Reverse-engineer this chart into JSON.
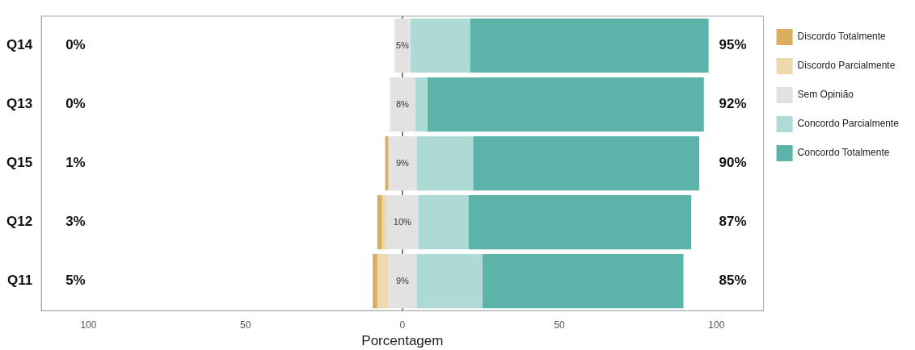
{
  "chart_data": {
    "type": "bar",
    "orientation": "horizontal",
    "xlabel": "Porcentagem",
    "categories": [
      "Q14",
      "Q13",
      "Q15",
      "Q12",
      "Q11"
    ],
    "series": [
      {
        "name": "Discordo Totalmente",
        "color": "#d9ae5f",
        "values": [
          null,
          null,
          1,
          1.5,
          1.5
        ],
        "base": [
          null,
          null,
          -5.5,
          -8,
          -9.5
        ]
      },
      {
        "name": "Discordo Parcialmente",
        "color": "#ecd9ae",
        "values": [
          null,
          null,
          null,
          1.5,
          3.5
        ],
        "base": [
          null,
          null,
          null,
          -6.5,
          -8
        ]
      },
      {
        "name": "Sem Opinião",
        "color": "#e2e2e2",
        "values": [
          5,
          8,
          9,
          10,
          9
        ],
        "base": [
          -2.5,
          -4,
          -4.5,
          -5,
          -4.5
        ],
        "value_labels": [
          "5%",
          "8%",
          "9%",
          "10%",
          "9%"
        ]
      },
      {
        "name": "Concordo Parcialmente",
        "color": "#aedad6",
        "values": [
          19,
          4,
          18,
          16,
          21
        ],
        "base": [
          2.5,
          4,
          4.5,
          5,
          4.5
        ]
      },
      {
        "name": "Concordo Totalmente",
        "color": "#5bb3a9",
        "values": [
          76,
          88,
          72,
          71,
          64
        ],
        "base": [
          21.5,
          8,
          22.5,
          21,
          25.5
        ]
      }
    ],
    "xlim": [
      -115,
      115
    ],
    "xticks": [
      {
        "value": -100,
        "label": "100"
      },
      {
        "value": -50,
        "label": "50"
      },
      0,
      50,
      100
    ],
    "grid": false,
    "legend": "top right",
    "ref_lines": [
      {
        "axis": "x",
        "value": 0,
        "color": "#000000"
      }
    ],
    "annotations": [
      "0%",
      "0%",
      "1%",
      "3%",
      "5%",
      "95%",
      "92%",
      "90%",
      "87%",
      "85%"
    ]
  }
}
